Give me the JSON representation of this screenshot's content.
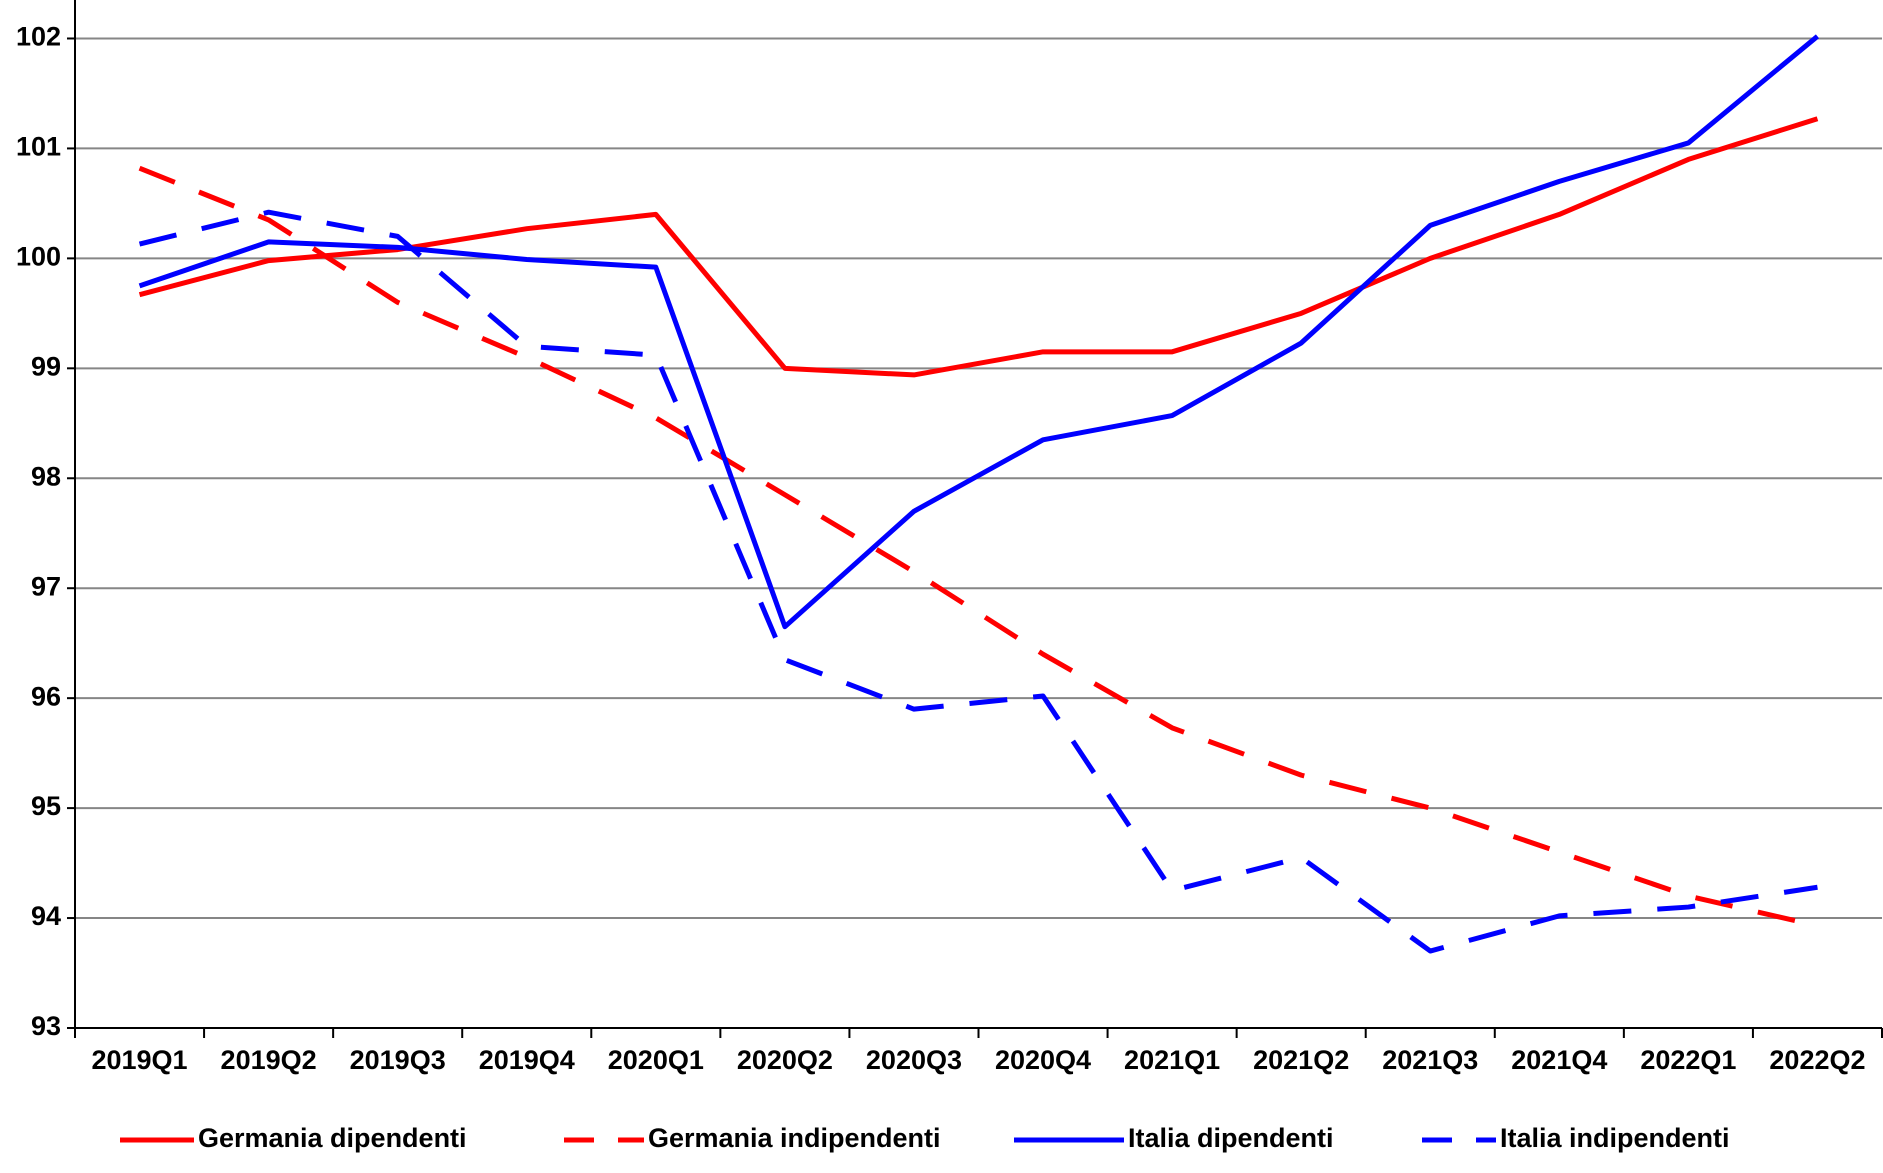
{
  "chart_data": {
    "type": "line",
    "categories": [
      "2019Q1",
      "2019Q2",
      "2019Q3",
      "2019Q4",
      "2020Q1",
      "2020Q2",
      "2020Q3",
      "2020Q4",
      "2021Q1",
      "2021Q2",
      "2021Q3",
      "2021Q4",
      "2022Q1",
      "2022Q2"
    ],
    "series": [
      {
        "name": "Germania dipendenti",
        "color": "#ff0000",
        "dashed": false,
        "values": [
          99.67,
          99.98,
          100.08,
          100.27,
          100.4,
          99.0,
          98.94,
          99.15,
          99.15,
          99.5,
          100.0,
          100.4,
          100.9,
          101.27
        ]
      },
      {
        "name": "Germania indipendenti",
        "color": "#ff0000",
        "dashed": true,
        "values": [
          100.82,
          100.35,
          99.6,
          99.1,
          98.55,
          97.85,
          97.15,
          96.4,
          95.73,
          95.3,
          95.0,
          94.6,
          94.2,
          93.93
        ]
      },
      {
        "name": "Italia dipendenti",
        "color": "#0000ff",
        "dashed": false,
        "values": [
          99.75,
          100.15,
          100.1,
          99.99,
          99.92,
          96.65,
          97.7,
          98.35,
          98.57,
          99.23,
          100.3,
          100.7,
          101.05,
          102.02
        ]
      },
      {
        "name": "Italia indipendenti",
        "color": "#0000ff",
        "dashed": true,
        "values": [
          100.13,
          100.42,
          100.2,
          99.2,
          99.12,
          96.35,
          95.9,
          96.02,
          94.25,
          94.55,
          93.7,
          94.02,
          94.1,
          94.28
        ]
      }
    ],
    "ylim": [
      93,
      102.35
    ],
    "yticks": [
      93,
      94,
      95,
      96,
      97,
      98,
      99,
      100,
      101,
      102
    ],
    "grid": true,
    "legend": "bottom"
  }
}
